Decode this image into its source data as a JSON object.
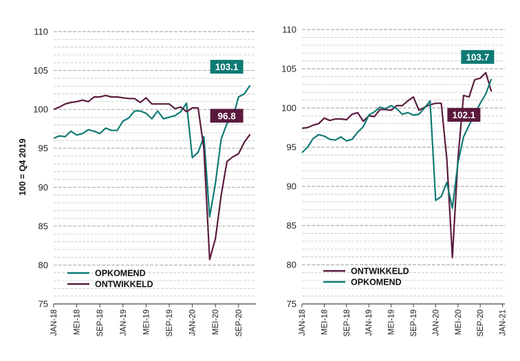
{
  "colors": {
    "opkomend": "#0f7a74",
    "ontwikkeld": "#5a1a3c",
    "grid": "#bbbbbb",
    "axis": "#444444"
  },
  "chart_data": [
    {
      "type": "line",
      "title": "",
      "ylabel": "100 = Q4 2019",
      "xlabel": "",
      "ylim": [
        75,
        110
      ],
      "yticks": [
        "110",
        "105",
        "100",
        "95",
        "90",
        "85",
        "80",
        "75"
      ],
      "x_ticks": [
        "JAN-18",
        "MEI-18",
        "SEP-18",
        "JAN-19",
        "MEI-19",
        "SEP-19",
        "JAN-20",
        "MEI-20",
        "SEP-20"
      ],
      "grid": "horizontal dashed",
      "legend": "bottom-left",
      "series": [
        {
          "name": "OPKOMEND",
          "color": "#0f7a74",
          "values": [
            96.3,
            96.6,
            96.5,
            97.2,
            96.7,
            96.9,
            97.4,
            97.2,
            96.9,
            97.6,
            97.3,
            97.3,
            98.5,
            98.9,
            99.8,
            99.8,
            99.5,
            98.8,
            99.8,
            98.8,
            99.0,
            99.2,
            99.7,
            100.8,
            93.8,
            94.5,
            96.5,
            86.2,
            90.5,
            96.2,
            98.2,
            98.9,
            101.6,
            102.0,
            103.1
          ],
          "end_label": "103.1"
        },
        {
          "name": "ONTWIKKELD",
          "color": "#5a1a3c",
          "values": [
            100.0,
            100.3,
            100.7,
            100.9,
            101.0,
            101.2,
            101.0,
            101.6,
            101.6,
            101.8,
            101.6,
            101.6,
            101.5,
            101.4,
            101.4,
            100.9,
            101.5,
            100.7,
            100.7,
            100.7,
            100.7,
            100.1,
            100.3,
            99.7,
            100.2,
            100.2,
            95.0,
            80.7,
            83.4,
            89.0,
            93.3,
            93.9,
            94.3,
            95.8,
            96.8
          ],
          "end_label": "96.8"
        }
      ]
    },
    {
      "type": "line",
      "title": "",
      "ylabel": "",
      "xlabel": "",
      "ylim": [
        75,
        110
      ],
      "yticks": [
        "110",
        "105",
        "100",
        "95",
        "90",
        "85",
        "80",
        "75"
      ],
      "x_ticks": [
        "JAN-18",
        "MEI-18",
        "SEP-18",
        "JAN-19",
        "MEI-19",
        "SEP-19",
        "JAN-20",
        "MEI-20",
        "SEP-20",
        "JAN-21"
      ],
      "grid": "horizontal dashed",
      "legend": "bottom-left",
      "series": [
        {
          "name": "ONTWIKKELD",
          "color": "#5a1a3c",
          "values": [
            97.4,
            97.5,
            97.8,
            98.0,
            98.7,
            98.4,
            98.6,
            98.6,
            98.5,
            99.2,
            99.4,
            98.3,
            99.0,
            98.9,
            99.8,
            99.8,
            99.7,
            100.3,
            100.3,
            100.9,
            101.4,
            99.7,
            100.1,
            100.4,
            100.6,
            100.6,
            93.5,
            80.9,
            93.5,
            101.6,
            101.4,
            103.6,
            103.8,
            104.5,
            102.1
          ],
          "end_label": "102.1"
        },
        {
          "name": "OPKOMEND",
          "color": "#0f7a74",
          "values": [
            94.3,
            95.0,
            96.1,
            96.6,
            96.4,
            96.0,
            95.9,
            96.3,
            95.8,
            96.0,
            96.9,
            97.6,
            99.1,
            99.5,
            100.1,
            99.9,
            100.3,
            99.9,
            99.2,
            99.4,
            99.1,
            99.2,
            100.0,
            100.9,
            88.2,
            88.7,
            90.5,
            87.2,
            93.0,
            96.3,
            97.8,
            99.2,
            100.6,
            101.8,
            103.7
          ],
          "end_label": "103.7"
        }
      ]
    }
  ]
}
